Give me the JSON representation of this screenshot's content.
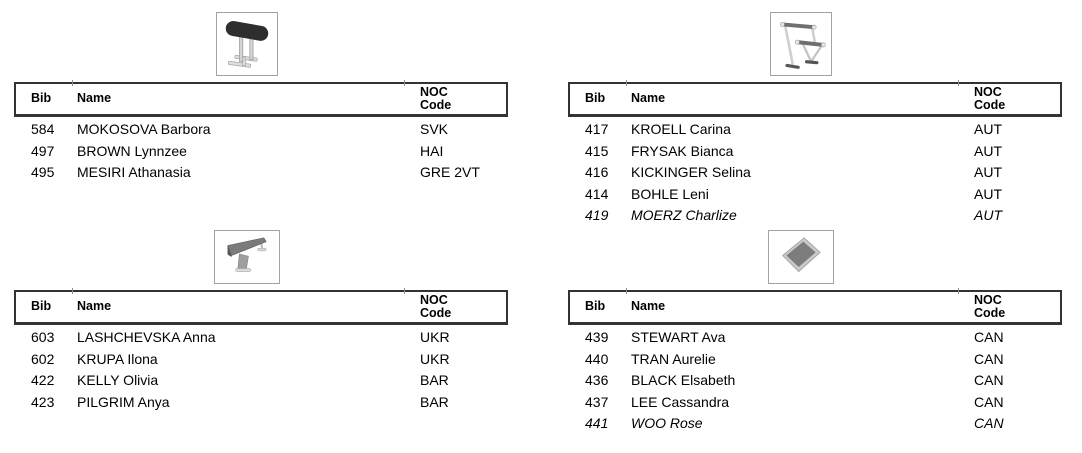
{
  "document_name": "start-list-by-apparatus",
  "colors": {
    "table_border": "#333333",
    "icon_box_border": "#a3a3a3",
    "text": "#000000",
    "apparatus_dark": "#2e2e2e",
    "apparatus_gray": "#7b7b7b",
    "apparatus_light": "#d9d9d9"
  },
  "header_labels": {
    "bib": "Bib",
    "name": "Name",
    "noc_line1": "NOC",
    "noc_line2": "Code"
  },
  "sections": [
    {
      "apparatus": "vault",
      "icon": "vault-icon",
      "rows": [
        {
          "bib": "584",
          "name": "MOKOSOVA Barbora",
          "noc": "SVK",
          "italic": false
        },
        {
          "bib": "497",
          "name": "BROWN Lynnzee",
          "noc": "HAI",
          "italic": false
        },
        {
          "bib": "495",
          "name": "MESIRI Athanasia",
          "noc": "GRE 2VT",
          "italic": false
        }
      ]
    },
    {
      "apparatus": "uneven-bars",
      "icon": "uneven-bars-icon",
      "rows": [
        {
          "bib": "417",
          "name": "KROELL Carina",
          "noc": "AUT",
          "italic": false
        },
        {
          "bib": "415",
          "name": "FRYSAK Bianca",
          "noc": "AUT",
          "italic": false
        },
        {
          "bib": "416",
          "name": "KICKINGER Selina",
          "noc": "AUT",
          "italic": false
        },
        {
          "bib": "414",
          "name": "BOHLE Leni",
          "noc": "AUT",
          "italic": false
        },
        {
          "bib": "419",
          "name": "MOERZ Charlize",
          "noc": "AUT",
          "italic": true
        }
      ]
    },
    {
      "apparatus": "balance-beam",
      "icon": "balance-beam-icon",
      "rows": [
        {
          "bib": "603",
          "name": "LASHCHEVSKA Anna",
          "noc": "UKR",
          "italic": false
        },
        {
          "bib": "602",
          "name": "KRUPA Ilona",
          "noc": "UKR",
          "italic": false
        },
        {
          "bib": "422",
          "name": "KELLY Olivia",
          "noc": "BAR",
          "italic": false
        },
        {
          "bib": "423",
          "name": "PILGRIM Anya",
          "noc": "BAR",
          "italic": false
        }
      ]
    },
    {
      "apparatus": "floor",
      "icon": "floor-icon",
      "rows": [
        {
          "bib": "439",
          "name": "STEWART Ava",
          "noc": "CAN",
          "italic": false
        },
        {
          "bib": "440",
          "name": "TRAN Aurelie",
          "noc": "CAN",
          "italic": false
        },
        {
          "bib": "436",
          "name": "BLACK Elsabeth",
          "noc": "CAN",
          "italic": false
        },
        {
          "bib": "437",
          "name": "LEE Cassandra",
          "noc": "CAN",
          "italic": false
        },
        {
          "bib": "441",
          "name": "WOO Rose",
          "noc": "CAN",
          "italic": true
        }
      ]
    }
  ]
}
